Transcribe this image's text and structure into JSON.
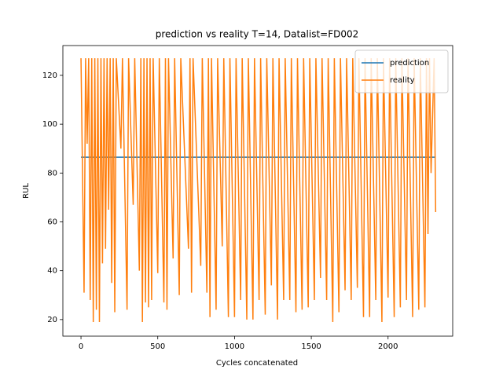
{
  "chart_data": {
    "type": "line",
    "title": "prediction vs reality T=14, Datalist=FD002",
    "xlabel": "Cycles concatenated",
    "ylabel": "RUL",
    "xlim": [
      -118,
      2421
    ],
    "ylim": [
      13.2,
      132.2
    ],
    "xticks": [
      0,
      500,
      1000,
      1500,
      2000
    ],
    "yticks": [
      20,
      40,
      60,
      80,
      100,
      120
    ],
    "legend": "upper right",
    "series": [
      {
        "name": "prediction",
        "color": "#1f77b4",
        "x": [
          0,
          2310
        ],
        "values": [
          86.5,
          86.5
        ]
      },
      {
        "name": "reality",
        "color": "#ff7f0e",
        "x": [
          0,
          20,
          30,
          40,
          50,
          60,
          70,
          80,
          90,
          100,
          110,
          120,
          130,
          140,
          150,
          160,
          170,
          180,
          190,
          200,
          210,
          220,
          230,
          260,
          270,
          300,
          310,
          340,
          350,
          380,
          390,
          400,
          410,
          420,
          430,
          440,
          450,
          460,
          470,
          500,
          510,
          540,
          550,
          560,
          570,
          600,
          610,
          640,
          650,
          700,
          710,
          720,
          730,
          780,
          790,
          820,
          830,
          840,
          850,
          880,
          890,
          920,
          930,
          960,
          970,
          1000,
          1010,
          1040,
          1050,
          1080,
          1090,
          1120,
          1130,
          1160,
          1170,
          1200,
          1210,
          1240,
          1250,
          1280,
          1290,
          1320,
          1330,
          1360,
          1370,
          1400,
          1410,
          1440,
          1450,
          1480,
          1490,
          1520,
          1530,
          1560,
          1570,
          1600,
          1610,
          1640,
          1650,
          1680,
          1690,
          1720,
          1730,
          1760,
          1770,
          1800,
          1810,
          1840,
          1850,
          1880,
          1890,
          1920,
          1930,
          1960,
          1970,
          2000,
          2010,
          2040,
          2050,
          2080,
          2090,
          2120,
          2130,
          2160,
          2170,
          2200,
          2210,
          2240,
          2250,
          2260,
          2270,
          2280,
          2300,
          2310
        ],
        "values": [
          127,
          31,
          127,
          92,
          127,
          28,
          127,
          19,
          127,
          24,
          127,
          19,
          127,
          43,
          127,
          49,
          127,
          65,
          127,
          35,
          127,
          23,
          127,
          90,
          127,
          24,
          127,
          67,
          127,
          40,
          127,
          19,
          127,
          27,
          127,
          25,
          127,
          28,
          127,
          39,
          127,
          27,
          127,
          24,
          127,
          45,
          127,
          30,
          127,
          49,
          127,
          31,
          127,
          42,
          127,
          31,
          127,
          21,
          127,
          24,
          127,
          50,
          127,
          21,
          127,
          21,
          127,
          28,
          127,
          20,
          127,
          20,
          127,
          28,
          127,
          22,
          127,
          34,
          127,
          20,
          127,
          28,
          127,
          28,
          127,
          23,
          127,
          24,
          127,
          25,
          127,
          28,
          127,
          37,
          127,
          28,
          127,
          19,
          127,
          23,
          127,
          32,
          127,
          28,
          127,
          33,
          127,
          21,
          127,
          21,
          127,
          28,
          127,
          19,
          127,
          29,
          127,
          21,
          127,
          25,
          127,
          28,
          127,
          21,
          127,
          24,
          127,
          25,
          127,
          55,
          127,
          80,
          127,
          64
        ]
      }
    ]
  }
}
